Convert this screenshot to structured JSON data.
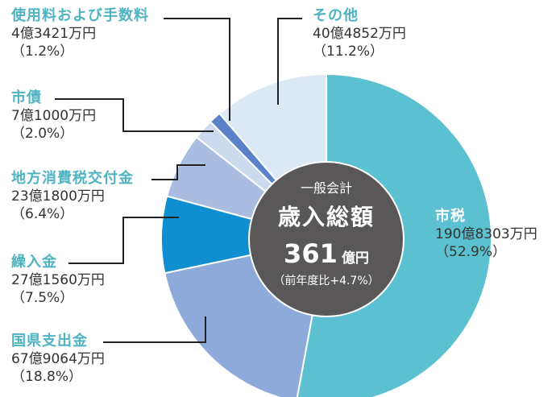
{
  "chart_data": {
    "type": "pie",
    "variant": "donut",
    "title": "一般会計 歳入総額",
    "total": {
      "value": 361,
      "unit": "億円",
      "label": "361億円",
      "yoy": "（前年度比+4.7%）"
    },
    "categories": [
      "市税",
      "国県支出金",
      "繰入金",
      "地方消費税交付金",
      "市債",
      "使用料および手数料",
      "その他"
    ],
    "values_pct": [
      52.9,
      18.8,
      7.5,
      6.4,
      2.0,
      1.2,
      11.2
    ],
    "amounts": [
      "190億8303万円",
      "67億9064万円",
      "27億1560万円",
      "23億1800万円",
      "7億1000万円",
      "4億3421万円",
      "40億4852万円"
    ],
    "colors": [
      "#5bc0cf",
      "#8eaadb",
      "#0f8fcf",
      "#a9bde0",
      "#ccdaf0",
      "#5b82c9",
      "#dde8f5"
    ],
    "start_angle_deg": 0,
    "direction": "clockwise"
  },
  "center": {
    "sub": "一般会計",
    "title": "歳入総額",
    "num": "361",
    "unit": "億円",
    "yoy": "（前年度比+4.7%）"
  },
  "labels": [
    {
      "name": "市税",
      "value": "190億8303万円",
      "pct": "（52.9%）"
    },
    {
      "name": "国県支出金",
      "value": "67億9064万円",
      "pct": "（18.8%）"
    },
    {
      "name": "繰入金",
      "value": "27億1560万円",
      "pct": "（7.5%）"
    },
    {
      "name": "地方消費税交付金",
      "value": "23億1800万円",
      "pct": "（6.4%）"
    },
    {
      "name": "市債",
      "value": "7億1000万円",
      "pct": "（2.0%）"
    },
    {
      "name": "使用料および手数料",
      "value": "4億3421万円",
      "pct": "（1.2%）"
    },
    {
      "name": "その他",
      "value": "40億4852万円",
      "pct": "（11.2%）"
    }
  ]
}
